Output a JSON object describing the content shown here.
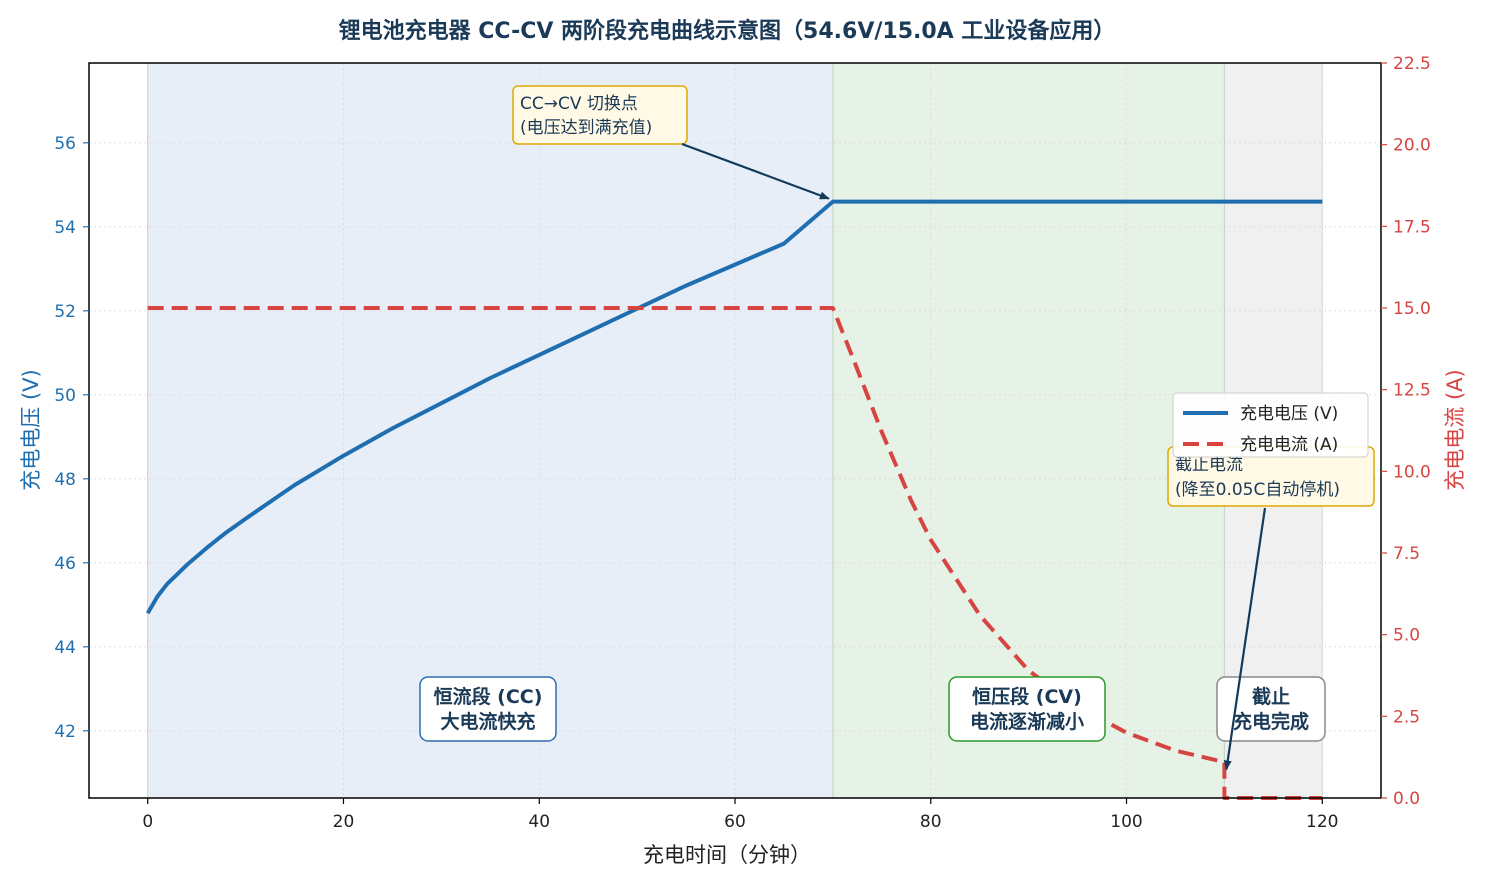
{
  "chart_data": {
    "type": "line",
    "title": "锂电池充电器 CC-CV 两阶段充电曲线示意图（54.6V/15.0A 工业设备应用）",
    "xlabel": "充电时间（分钟）",
    "ylabel_left": "充电电压 (V)",
    "ylabel_right": "充电电流 (A)",
    "xlim": [
      -6,
      126
    ],
    "ylim_left": [
      40.4,
      57.9
    ],
    "ylim_right": [
      0,
      22.5
    ],
    "x_ticks": [
      "0",
      "20",
      "40",
      "60",
      "80",
      "100",
      "120"
    ],
    "y_left_ticks": [
      "42",
      "44",
      "46",
      "48",
      "50",
      "52",
      "54",
      "56"
    ],
    "y_right_ticks": [
      "0.0",
      "2.5",
      "5.0",
      "7.5",
      "10.0",
      "12.5",
      "15.0",
      "17.5",
      "20.0",
      "22.5"
    ],
    "grid": true,
    "legend_position": "center-right",
    "series": [
      {
        "name": "充电电压 (V)",
        "axis": "left",
        "color": "#1f6fb0",
        "style": "solid",
        "x": [
          0,
          1,
          2,
          4,
          6,
          8,
          10,
          15,
          20,
          25,
          30,
          35,
          40,
          45,
          50,
          55,
          60,
          65,
          70,
          80,
          90,
          100,
          110,
          120
        ],
        "values": [
          44.8,
          45.2,
          45.5,
          45.95,
          46.35,
          46.72,
          47.05,
          47.85,
          48.55,
          49.2,
          49.8,
          50.4,
          50.95,
          51.5,
          52.05,
          52.6,
          53.1,
          53.6,
          54.6,
          54.6,
          54.6,
          54.6,
          54.6,
          54.6
        ]
      },
      {
        "name": "充电电流 (A)",
        "axis": "right",
        "color": "#d64541",
        "style": "dashed",
        "x": [
          0,
          70,
          72,
          75,
          78,
          80,
          85,
          90,
          95,
          100,
          105,
          110,
          110,
          120
        ],
        "values": [
          15.0,
          15.0,
          13.5,
          11.2,
          9.1,
          7.9,
          5.6,
          3.9,
          2.8,
          2.0,
          1.45,
          1.1,
          0.0,
          0.0
        ]
      }
    ],
    "phases": [
      {
        "label_line1": "恒流段 (CC)",
        "label_line2": "大电流快充",
        "x_start": 0,
        "x_end": 70,
        "fill": "#e8eef8",
        "border": "#2a6fb0"
      },
      {
        "label_line1": "恒压段 (CV)",
        "label_line2": "电流逐渐减小",
        "x_start": 70,
        "x_end": 110,
        "fill": "#e6f2e6",
        "border": "#2a9a2a"
      },
      {
        "label_line1": "截止",
        "label_line2": "充电完成",
        "x_start": 110,
        "x_end": 120,
        "fill": "#f0f0f0",
        "border": "#888888"
      }
    ],
    "annotations": [
      {
        "line1": "CC→CV 切换点",
        "line2": "(电压达到满充值)",
        "target_x": 70,
        "target_y_left": 54.6
      },
      {
        "line1": "截止电流",
        "line2": "(降至0.05C自动停机)",
        "target_x": 110,
        "target_y_right": 0.75
      }
    ]
  }
}
